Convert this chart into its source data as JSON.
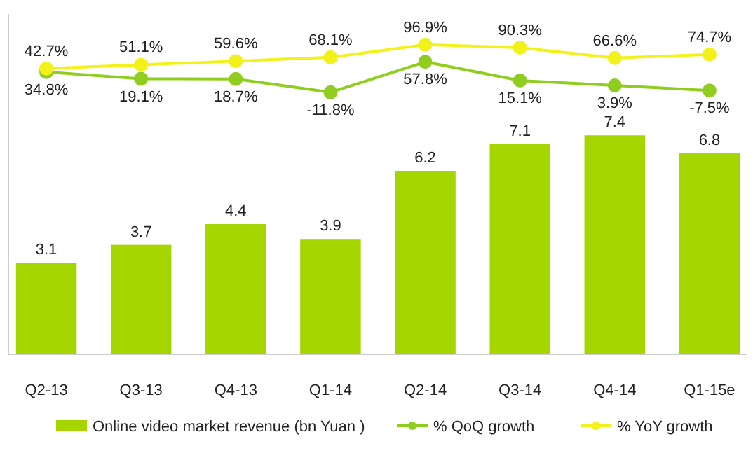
{
  "chart_data": {
    "type": "bar",
    "categories": [
      "Q2-13",
      "Q3-13",
      "Q4-13",
      "Q1-14",
      "Q2-14",
      "Q3-14",
      "Q4-14",
      "Q1-15e"
    ],
    "series": [
      {
        "name": "Online video market revenue (bn Yuan )",
        "color": "#a5d600",
        "values": [
          3.1,
          3.7,
          4.4,
          3.9,
          6.2,
          7.1,
          7.4,
          6.8
        ]
      },
      {
        "name": "% QoQ growth",
        "type": "line",
        "axis": "y2",
        "color": "#8fce1e",
        "values": [
          34.8,
          19.1,
          18.7,
          -11.8,
          57.8,
          15.1,
          3.9,
          -7.5
        ],
        "value_labels": [
          "34.8%",
          "19.1%",
          "18.7%",
          "-11.8%",
          "57.8%",
          "15.1%",
          "3.9%",
          "-7.5%"
        ]
      },
      {
        "name": "% YoY growth",
        "type": "line",
        "axis": "y2",
        "color": "#f2f21a",
        "values": [
          42.7,
          51.1,
          59.6,
          68.1,
          96.9,
          90.3,
          66.6,
          74.7
        ],
        "value_labels": [
          "42.7%",
          "51.1%",
          "59.6%",
          "68.1%",
          "96.9%",
          "90.3%",
          "66.6%",
          "74.7%"
        ]
      }
    ],
    "ylim": [
      0,
      11.5
    ],
    "y2lim": [
      -610,
      167
    ],
    "tick_labels": "x",
    "data_labels": true,
    "marker": "circle",
    "legend": "bottom"
  }
}
